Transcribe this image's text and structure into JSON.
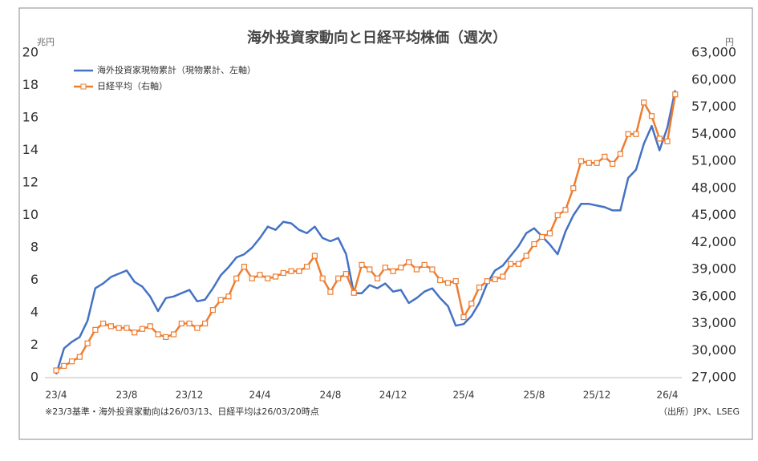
{
  "chart_data": {
    "type": "line",
    "title": "海外投資家動向と日経平均株価（週次）",
    "y_unit": "兆円",
    "y2_unit": "円",
    "note": "※23/3基準・海外投資家動向は26/03/13、日経平均は26/03/20時点",
    "source": "（出所）JPX、LSEG",
    "categories": [
      "23/4",
      null,
      null,
      null,
      null,
      null,
      null,
      null,
      null,
      "23/8",
      null,
      null,
      null,
      null,
      null,
      null,
      null,
      "23/12",
      null,
      null,
      null,
      null,
      null,
      null,
      null,
      null,
      "24/4",
      null,
      null,
      null,
      null,
      null,
      null,
      null,
      null,
      "24/8",
      null,
      null,
      null,
      null,
      null,
      null,
      null,
      "24/12",
      null,
      null,
      null,
      null,
      null,
      null,
      null,
      null,
      "25/4",
      null,
      null,
      null,
      null,
      null,
      null,
      null,
      null,
      "25/8",
      null,
      null,
      null,
      null,
      null,
      null,
      null,
      "25/12",
      null,
      null,
      null,
      null,
      null,
      null,
      null,
      null,
      "26/4",
      null
    ],
    "series": [
      {
        "name": "海外投資家現物累計（現物累計、左軸）",
        "color": "#4472c4",
        "axis": "y",
        "markers": false,
        "values": [
          0.2,
          1.8,
          2.2,
          2.5,
          3.5,
          5.5,
          5.8,
          6.2,
          6.4,
          6.6,
          5.9,
          5.6,
          5.0,
          4.1,
          4.9,
          5.0,
          5.2,
          5.4,
          4.7,
          4.8,
          5.5,
          6.3,
          6.8,
          7.4,
          7.6,
          8.0,
          8.6,
          9.3,
          9.1,
          9.6,
          9.5,
          9.1,
          8.9,
          9.3,
          8.6,
          8.4,
          8.6,
          7.6,
          5.2,
          5.2,
          5.7,
          5.5,
          5.8,
          5.3,
          5.4,
          4.6,
          4.9,
          5.3,
          5.5,
          4.9,
          4.4,
          3.2,
          3.3,
          3.8,
          4.6,
          5.8,
          6.6,
          6.9,
          7.5,
          8.1,
          8.9,
          9.2,
          8.7,
          8.2,
          7.6,
          9.0,
          10.0,
          10.7,
          10.7,
          10.6,
          10.5,
          10.3,
          10.3,
          12.3,
          12.8,
          14.4,
          15.5,
          14.0,
          15.4,
          17.7
        ]
      },
      {
        "name": "日経平均（右軸）",
        "color": "#ed7d31",
        "axis": "y2",
        "markers": true,
        "values": [
          27800,
          28300,
          28800,
          29300,
          30800,
          32300,
          33000,
          32700,
          32500,
          32500,
          32000,
          32400,
          32700,
          31800,
          31500,
          31800,
          33000,
          33000,
          32500,
          33000,
          34500,
          35600,
          36000,
          38000,
          39300,
          38000,
          38400,
          38000,
          38200,
          38600,
          38800,
          38800,
          39300,
          40500,
          38000,
          36500,
          38000,
          38500,
          36400,
          39500,
          39000,
          38000,
          39200,
          38800,
          39200,
          39800,
          39000,
          39500,
          39000,
          37800,
          37500,
          37700,
          33700,
          35200,
          37000,
          37700,
          37900,
          38200,
          39600,
          39600,
          40500,
          41800,
          42600,
          43000,
          45000,
          45600,
          48000,
          51000,
          50800,
          50800,
          51500,
          50700,
          51800,
          54000,
          54000,
          57500,
          56000,
          53500,
          53200,
          58400
        ]
      }
    ],
    "ylim": [
      0,
      20
    ],
    "yticks": [
      0,
      2,
      4,
      6,
      8,
      10,
      12,
      14,
      16,
      18,
      20
    ],
    "y2lim": [
      27000,
      63000
    ],
    "y2ticks": [
      {
        "value": 27000,
        "label": "27,000"
      },
      {
        "value": 30000,
        "label": "30,000"
      },
      {
        "value": 33000,
        "label": "33,000"
      },
      {
        "value": 36000,
        "label": "36,000"
      },
      {
        "value": 39000,
        "label": "39,000"
      },
      {
        "value": 42000,
        "label": "42,000"
      },
      {
        "value": 45000,
        "label": "45,000"
      },
      {
        "value": 48000,
        "label": "48,000"
      },
      {
        "value": 51000,
        "label": "51,000"
      },
      {
        "value": 54000,
        "label": "54,000"
      },
      {
        "value": 57000,
        "label": "57,000"
      },
      {
        "value": 60000,
        "label": "60,000"
      },
      {
        "value": 63000,
        "label": "63,000"
      }
    ],
    "grid": false,
    "legend": "top-left"
  }
}
